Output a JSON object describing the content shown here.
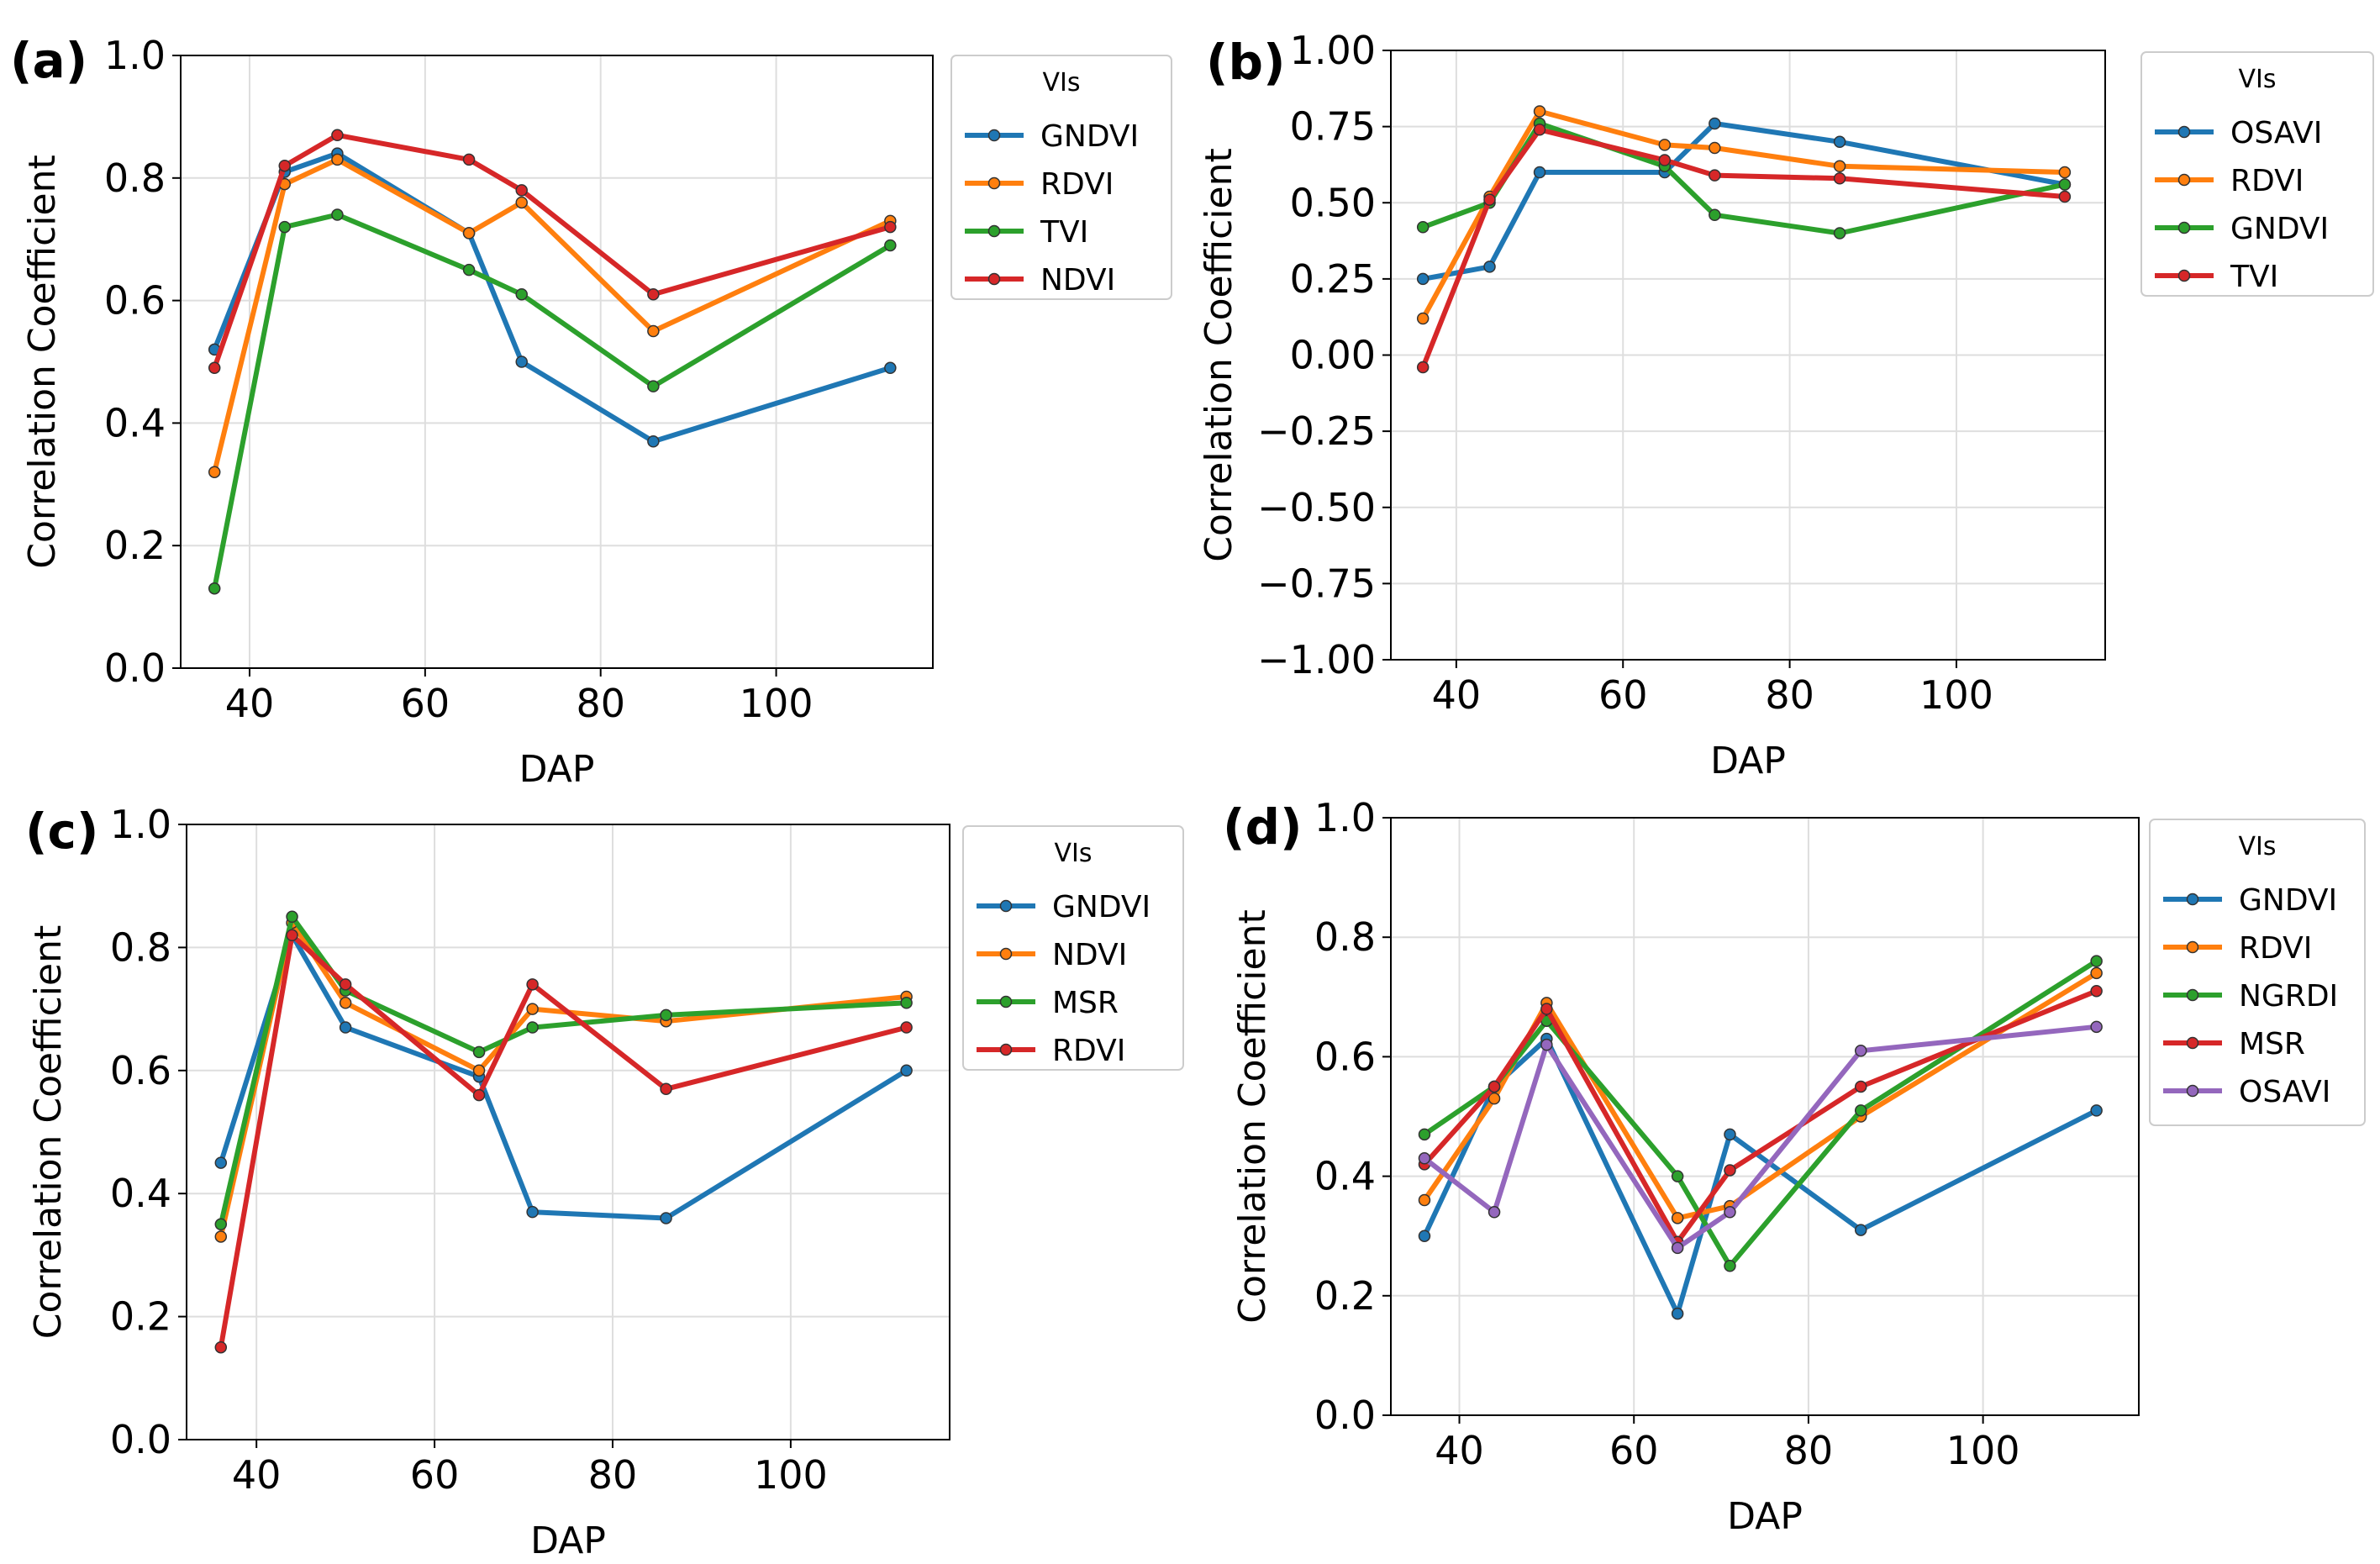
{
  "figure": {
    "colors": {
      "blue": "#1f77b4",
      "orange": "#ff7f0e",
      "green": "#2ca02c",
      "red": "#d62728",
      "purple": "#9467bd",
      "grid": "#dedede",
      "axis": "#000000",
      "legend_border": "#cccccc"
    }
  },
  "chart_data": [
    {
      "panel_label": "(a)",
      "type": "line",
      "xlabel": "DAP",
      "ylabel": "Correlation Coefficient",
      "xlim": [
        32.15,
        117.85
      ],
      "ylim": [
        0.0,
        1.0
      ],
      "xticks": [
        40,
        60,
        80,
        100
      ],
      "xtick_labels": [
        "40",
        "60",
        "80",
        "100"
      ],
      "yticks": [
        0.0,
        0.2,
        0.4,
        0.6,
        0.8,
        1.0
      ],
      "ytick_labels": [
        "0.0",
        "0.2",
        "0.4",
        "0.6",
        "0.8",
        "1.0"
      ],
      "grid": true,
      "legend_title": "VIs",
      "legend_position": "outside-right-top",
      "x": [
        36,
        44,
        50,
        65,
        71,
        86,
        113
      ],
      "series": [
        {
          "name": "GNDVI",
          "color": "#1f77b4",
          "values": [
            0.52,
            0.81,
            0.84,
            0.71,
            0.5,
            0.37,
            0.49
          ]
        },
        {
          "name": "RDVI",
          "color": "#ff7f0e",
          "values": [
            0.32,
            0.79,
            0.83,
            0.71,
            0.76,
            0.55,
            0.73
          ]
        },
        {
          "name": "TVI",
          "color": "#2ca02c",
          "values": [
            0.13,
            0.72,
            0.74,
            0.65,
            0.61,
            0.46,
            0.69
          ]
        },
        {
          "name": "NDVI",
          "color": "#d62728",
          "values": [
            0.49,
            0.82,
            0.87,
            0.83,
            0.78,
            0.61,
            0.72
          ]
        }
      ]
    },
    {
      "panel_label": "(b)",
      "type": "line",
      "xlabel": "DAP",
      "ylabel": "Correlation Coefficient",
      "xlim": [
        32.15,
        117.85
      ],
      "ylim": [
        -1.0,
        1.0
      ],
      "xticks": [
        40,
        60,
        80,
        100
      ],
      "xtick_labels": [
        "40",
        "60",
        "80",
        "100"
      ],
      "yticks": [
        -1.0,
        -0.75,
        -0.5,
        -0.25,
        0.0,
        0.25,
        0.5,
        0.75,
        1.0
      ],
      "ytick_labels": [
        "−1.00",
        "−0.75",
        "−0.50",
        "−0.25",
        "0.00",
        "0.25",
        "0.50",
        "0.75",
        "1.00"
      ],
      "grid": true,
      "legend_title": "VIs",
      "legend_position": "outside-right-top",
      "x": [
        36,
        44,
        50,
        65,
        71,
        86,
        113
      ],
      "series": [
        {
          "name": "OSAVI",
          "color": "#1f77b4",
          "values": [
            0.25,
            0.29,
            0.6,
            0.6,
            0.76,
            0.7,
            0.56
          ]
        },
        {
          "name": "RDVI",
          "color": "#ff7f0e",
          "values": [
            0.12,
            0.52,
            0.8,
            0.69,
            0.68,
            0.62,
            0.6
          ]
        },
        {
          "name": "GNDVI",
          "color": "#2ca02c",
          "values": [
            0.42,
            0.5,
            0.76,
            0.62,
            0.46,
            0.4,
            0.56
          ]
        },
        {
          "name": "TVI",
          "color": "#d62728",
          "values": [
            -0.04,
            0.51,
            0.74,
            0.64,
            0.59,
            0.58,
            0.52
          ]
        }
      ]
    },
    {
      "panel_label": "(c)",
      "type": "line",
      "xlabel": "DAP",
      "ylabel": "Correlation Coefficient",
      "xlim": [
        32.15,
        117.85
      ],
      "ylim": [
        0.0,
        1.0
      ],
      "xticks": [
        40,
        60,
        80,
        100
      ],
      "xtick_labels": [
        "40",
        "60",
        "80",
        "100"
      ],
      "yticks": [
        0.0,
        0.2,
        0.4,
        0.6,
        0.8,
        1.0
      ],
      "ytick_labels": [
        "0.0",
        "0.2",
        "0.4",
        "0.6",
        "0.8",
        "1.0"
      ],
      "grid": true,
      "legend_title": "VIs",
      "legend_position": "outside-right-top",
      "x": [
        36,
        44,
        50,
        65,
        71,
        86,
        113
      ],
      "series": [
        {
          "name": "GNDVI",
          "color": "#1f77b4",
          "values": [
            0.45,
            0.82,
            0.67,
            0.59,
            0.37,
            0.36,
            0.6
          ]
        },
        {
          "name": "NDVI",
          "color": "#ff7f0e",
          "values": [
            0.33,
            0.84,
            0.71,
            0.6,
            0.7,
            0.68,
            0.72
          ]
        },
        {
          "name": "MSR",
          "color": "#2ca02c",
          "values": [
            0.35,
            0.85,
            0.73,
            0.63,
            0.67,
            0.69,
            0.71
          ]
        },
        {
          "name": "RDVI",
          "color": "#d62728",
          "values": [
            0.15,
            0.82,
            0.74,
            0.56,
            0.74,
            0.57,
            0.67
          ]
        }
      ]
    },
    {
      "panel_label": "(d)",
      "type": "line",
      "xlabel": "DAP",
      "ylabel": "Correlation Coefficient",
      "xlim": [
        32.15,
        117.85
      ],
      "ylim": [
        0.0,
        1.0
      ],
      "xticks": [
        40,
        60,
        80,
        100
      ],
      "xtick_labels": [
        "40",
        "60",
        "80",
        "100"
      ],
      "yticks": [
        0.0,
        0.2,
        0.4,
        0.6,
        0.8,
        1.0
      ],
      "ytick_labels": [
        "0.0",
        "0.2",
        "0.4",
        "0.6",
        "0.8",
        "1.0"
      ],
      "grid": true,
      "legend_title": "VIs",
      "legend_position": "outside-right-top",
      "x": [
        36,
        44,
        50,
        65,
        71,
        86,
        113
      ],
      "series": [
        {
          "name": "GNDVI",
          "color": "#1f77b4",
          "values": [
            0.3,
            0.55,
            0.63,
            0.17,
            0.47,
            0.31,
            0.51
          ]
        },
        {
          "name": "RDVI",
          "color": "#ff7f0e",
          "values": [
            0.36,
            0.53,
            0.69,
            0.33,
            0.35,
            0.5,
            0.74
          ]
        },
        {
          "name": "NGRDI",
          "color": "#2ca02c",
          "values": [
            0.47,
            0.55,
            0.66,
            0.4,
            0.25,
            0.51,
            0.76
          ]
        },
        {
          "name": "MSR",
          "color": "#d62728",
          "values": [
            0.42,
            0.55,
            0.68,
            0.29,
            0.41,
            0.55,
            0.71
          ]
        },
        {
          "name": "OSAVI",
          "color": "#9467bd",
          "values": [
            0.43,
            0.34,
            0.62,
            0.28,
            0.34,
            0.61,
            0.65
          ]
        }
      ]
    }
  ]
}
